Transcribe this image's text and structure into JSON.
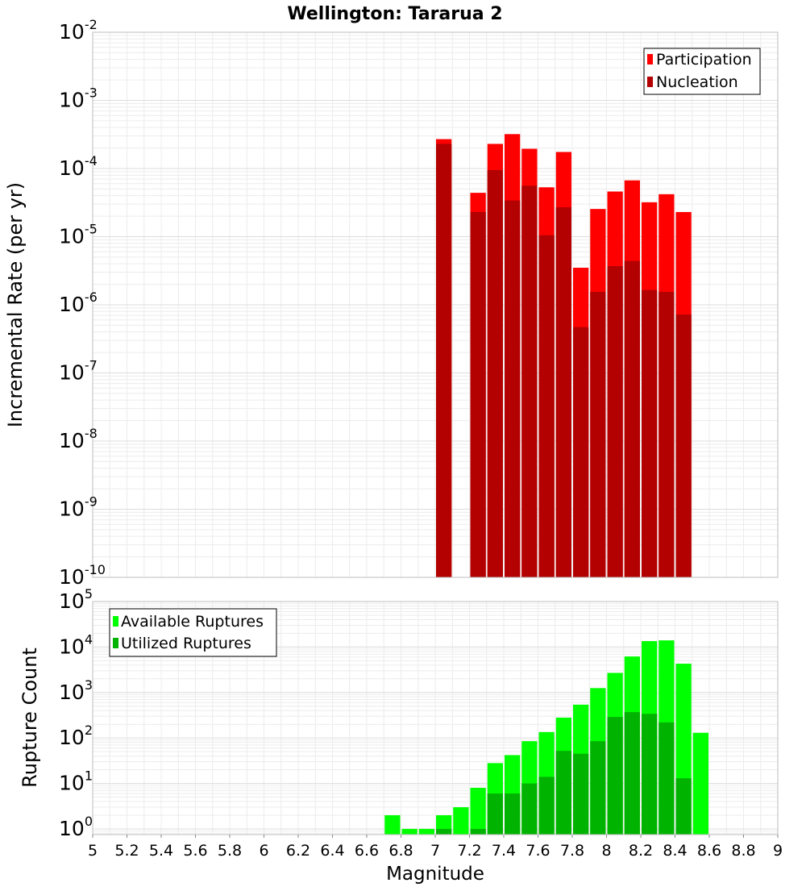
{
  "chart_data": [
    {
      "type": "bar",
      "title": "Wellington: Tararua 2",
      "xlabel": "",
      "ylabel": "Incremental Rate (per yr)",
      "yscale": "log",
      "xlim": [
        5,
        9
      ],
      "ylim": [
        1e-10,
        0.01
      ],
      "grid": true,
      "legend": {
        "placement": "top-right",
        "entries": [
          "Participation",
          "Nucleation"
        ]
      },
      "y_ticks": [
        {
          "value": 1e-10,
          "base": "10",
          "exp": "-10"
        },
        {
          "value": 1e-09,
          "base": "10",
          "exp": "-9"
        },
        {
          "value": 1e-08,
          "base": "10",
          "exp": "-8"
        },
        {
          "value": 1e-07,
          "base": "10",
          "exp": "-7"
        },
        {
          "value": 1e-06,
          "base": "10",
          "exp": "-6"
        },
        {
          "value": 1e-05,
          "base": "10",
          "exp": "-5"
        },
        {
          "value": 0.0001,
          "base": "10",
          "exp": "-4"
        },
        {
          "value": 0.001,
          "base": "10",
          "exp": "-3"
        },
        {
          "value": 0.01,
          "base": "10",
          "exp": "-2"
        }
      ],
      "bar_width": 0.1,
      "series": [
        {
          "name": "Participation",
          "color": "#ff0000",
          "x": [
            7.05,
            7.25,
            7.35,
            7.45,
            7.55,
            7.65,
            7.75,
            7.85,
            7.95,
            8.05,
            8.15,
            8.25,
            8.35,
            8.45
          ],
          "values": [
            0.00027,
            4.4e-05,
            0.00023,
            0.00032,
            0.000195,
            5.3e-05,
            0.000175,
            3.5e-06,
            2.55e-05,
            4.6e-05,
            6.7e-05,
            3.2e-05,
            4.2e-05,
            2.3e-05
          ]
        },
        {
          "name": "Nucleation",
          "color": "#b30000",
          "x": [
            7.05,
            7.25,
            7.35,
            7.45,
            7.55,
            7.65,
            7.75,
            7.85,
            7.95,
            8.05,
            8.15,
            8.25,
            8.35,
            8.45
          ],
          "values": [
            0.00023,
            2.3e-05,
            9.5e-05,
            3.4e-05,
            5.6e-05,
            1.05e-05,
            2.7e-05,
            4.7e-07,
            1.55e-06,
            3.7e-06,
            4.4e-06,
            1.65e-06,
            1.55e-06,
            7.2e-07
          ]
        }
      ]
    },
    {
      "type": "bar",
      "title": "",
      "xlabel": "Magnitude",
      "ylabel": "Rupture Count",
      "yscale": "log",
      "xlim": [
        5,
        9
      ],
      "ylim": [
        0.75,
        100000.0
      ],
      "grid": true,
      "legend": {
        "placement": "top-left",
        "entries": [
          "Available Ruptures",
          "Utilized Ruptures"
        ]
      },
      "x_ticks": [
        "5",
        "5.2",
        "5.4",
        "5.6",
        "5.8",
        "6",
        "6.2",
        "6.4",
        "6.6",
        "6.8",
        "7",
        "7.2",
        "7.4",
        "7.6",
        "7.8",
        "8",
        "8.2",
        "8.4",
        "8.6",
        "8.8",
        "9"
      ],
      "y_ticks": [
        {
          "value": 1,
          "base": "10",
          "exp": "0"
        },
        {
          "value": 10,
          "base": "10",
          "exp": "1"
        },
        {
          "value": 100,
          "base": "10",
          "exp": "2"
        },
        {
          "value": 1000,
          "base": "10",
          "exp": "3"
        },
        {
          "value": 10000,
          "base": "10",
          "exp": "4"
        },
        {
          "value": 100000,
          "base": "10",
          "exp": "5"
        }
      ],
      "bar_width": 0.1,
      "series": [
        {
          "name": "Available Ruptures",
          "color": "#00ff00",
          "x": [
            6.75,
            6.85,
            6.95,
            7.05,
            7.15,
            7.25,
            7.35,
            7.45,
            7.55,
            7.65,
            7.75,
            7.85,
            7.95,
            8.05,
            8.15,
            8.25,
            8.35,
            8.45,
            8.55
          ],
          "values": [
            2,
            1,
            1,
            2,
            3,
            8,
            28,
            42,
            85,
            135,
            280,
            540,
            1250,
            2700,
            6200,
            13500,
            14000,
            4300,
            130
          ]
        },
        {
          "name": "Utilized Ruptures",
          "color": "#00b300",
          "x": [
            7.05,
            7.25,
            7.35,
            7.45,
            7.55,
            7.65,
            7.75,
            7.85,
            7.95,
            8.05,
            8.15,
            8.25,
            8.35,
            8.45
          ],
          "values": [
            1,
            1,
            6,
            6,
            10,
            14,
            52,
            45,
            85,
            290,
            370,
            340,
            220,
            13
          ]
        }
      ]
    }
  ]
}
